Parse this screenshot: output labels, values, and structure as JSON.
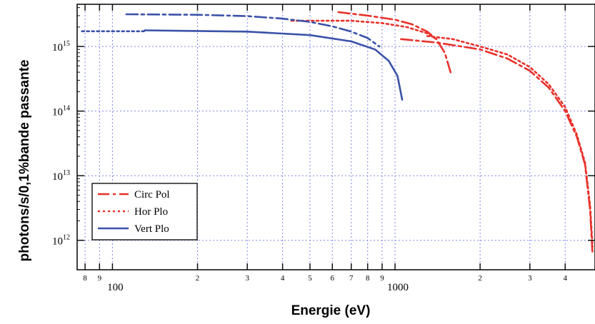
{
  "chart_data": {
    "type": "line",
    "xlabel": "Energie (eV)",
    "ylabel": "photons/s/0,1%bande passante",
    "x_scale": "log",
    "y_scale": "log",
    "xlim": [
      75,
      5100
    ],
    "ylim": [
      350000000000.0,
      4500000000000000.0
    ],
    "grid": true,
    "legend_position": "lower-left",
    "x_major_ticks": [
      {
        "value": 100,
        "label": "100"
      },
      {
        "value": 1000,
        "label": "1000"
      }
    ],
    "x_minor_ticks": [
      {
        "value": 80,
        "label": "8"
      },
      {
        "value": 90,
        "label": "9"
      },
      {
        "value": 200,
        "label": "2"
      },
      {
        "value": 300,
        "label": "3"
      },
      {
        "value": 400,
        "label": "4"
      },
      {
        "value": 500,
        "label": "5"
      },
      {
        "value": 600,
        "label": "6"
      },
      {
        "value": 700,
        "label": "7"
      },
      {
        "value": 800,
        "label": "8"
      },
      {
        "value": 900,
        "label": "9"
      },
      {
        "value": 2000,
        "label": "2"
      },
      {
        "value": 3000,
        "label": "3"
      },
      {
        "value": 4000,
        "label": "4"
      }
    ],
    "y_ticks": [
      {
        "value": 1000000000000.0,
        "mantissa": "10",
        "exponent": "12"
      },
      {
        "value": 10000000000000.0,
        "mantissa": "10",
        "exponent": "13"
      },
      {
        "value": 100000000000000.0,
        "mantissa": "10",
        "exponent": "14"
      },
      {
        "value": 1000000000000000.0,
        "mantissa": "10",
        "exponent": "15"
      }
    ],
    "series": [
      {
        "name": "Circ Pol",
        "color": "#e8312a",
        "dash": "dash-dot",
        "segment": "upper",
        "points": [
          [
            630,
            3400000000000000.0
          ],
          [
            800,
            3000000000000000.0
          ],
          [
            1000,
            2600000000000000.0
          ],
          [
            1150,
            2200000000000000.0
          ],
          [
            1300,
            1700000000000000.0
          ],
          [
            1400,
            1300000000000000.0
          ],
          [
            1500,
            800000000000000.0
          ],
          [
            1580,
            370000000000000.0
          ]
        ]
      },
      {
        "name": "Circ Pol",
        "color": "#e8312a",
        "dash": "dash-dot",
        "segment": "lower",
        "points": [
          [
            1050,
            1300000000000000.0
          ],
          [
            1400,
            1150000000000000.0
          ],
          [
            2000,
            900000000000000.0
          ],
          [
            2500,
            650000000000000.0
          ],
          [
            3000,
            420000000000000.0
          ],
          [
            3500,
            230000000000000.0
          ],
          [
            4000,
            100000000000000.0
          ],
          [
            4400,
            40000000000000.0
          ],
          [
            4700,
            15000000000000.0
          ],
          [
            4900,
            3000000000000.0
          ],
          [
            5000,
            600000000000.0
          ]
        ]
      },
      {
        "name": "Hor Plo",
        "color": "#e8312a",
        "dash": "dotted",
        "segment": "upper",
        "points": [
          [
            430,
            2500000000000000.0
          ],
          [
            700,
            2500000000000000.0
          ],
          [
            900,
            2300000000000000.0
          ],
          [
            1100,
            2000000000000000.0
          ],
          [
            1300,
            1600000000000000.0
          ],
          [
            1400,
            1300000000000000.0
          ]
        ]
      },
      {
        "name": "Hor Plo",
        "color": "#e8312a",
        "dash": "dotted",
        "segment": "lower",
        "points": [
          [
            1300,
            1450000000000000.0
          ],
          [
            1600,
            1300000000000000.0
          ],
          [
            2000,
            1000000000000000.0
          ],
          [
            2500,
            750000000000000.0
          ],
          [
            3000,
            480000000000000.0
          ],
          [
            3500,
            260000000000000.0
          ],
          [
            4000,
            115000000000000.0
          ],
          [
            4400,
            43000000000000.0
          ],
          [
            4700,
            16000000000000.0
          ],
          [
            4900,
            3500000000000.0
          ],
          [
            5000,
            800000000000.0
          ]
        ]
      },
      {
        "name": "Hor Plo",
        "color": "#3a52a8",
        "dash": "dotted",
        "segment": "blue-start",
        "points": [
          [
            78,
            1720000000000000.0
          ],
          [
            130,
            1720000000000000.0
          ]
        ]
      },
      {
        "name": "Vert Plo",
        "color": "#3a52a8",
        "dash": "dash-dot",
        "segment": "upper",
        "points": [
          [
            112,
            3150000000000000.0
          ],
          [
            200,
            3100000000000000.0
          ],
          [
            300,
            2950000000000000.0
          ],
          [
            400,
            2700000000000000.0
          ],
          [
            500,
            2400000000000000.0
          ],
          [
            600,
            2050000000000000.0
          ],
          [
            700,
            1700000000000000.0
          ],
          [
            800,
            1350000000000000.0
          ],
          [
            880,
            1000000000000000.0
          ]
        ]
      },
      {
        "name": "Vert Plo",
        "color": "#3a52a8",
        "dash": "solid",
        "segment": "lower",
        "points": [
          [
            130,
            1780000000000000.0
          ],
          [
            300,
            1700000000000000.0
          ],
          [
            500,
            1500000000000000.0
          ],
          [
            700,
            1200000000000000.0
          ],
          [
            850,
            900000000000000.0
          ],
          [
            950,
            600000000000000.0
          ],
          [
            1020,
            350000000000000.0
          ],
          [
            1060,
            150000000000000.0
          ]
        ]
      }
    ],
    "legend": [
      {
        "label": "Circ Pol",
        "color": "#e8312a",
        "dash": "dash-dot"
      },
      {
        "label": "Hor Plo",
        "color": "#e8312a",
        "dash": "dotted"
      },
      {
        "label": "Vert Plo",
        "color": "#3a52a8",
        "dash": "solid"
      }
    ]
  }
}
